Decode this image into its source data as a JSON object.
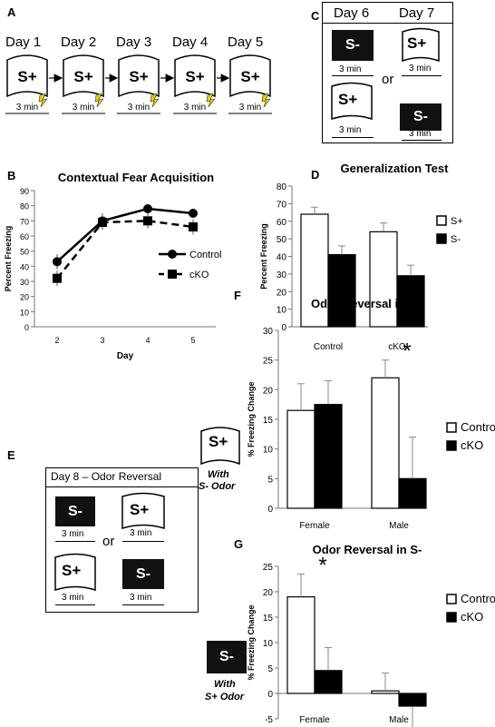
{
  "panels": {
    "A": "A",
    "B": "B",
    "C": "C",
    "D": "D",
    "E": "E",
    "F": "F",
    "G": "G"
  },
  "panelA": {
    "days": [
      "Day 1",
      "Day 2",
      "Day 3",
      "Day 4",
      "Day 5"
    ],
    "context": "S+",
    "duration": "3 min"
  },
  "panelC": {
    "day6": "Day 6",
    "day7": "Day 7",
    "s_minus": "S-",
    "s_plus": "S+",
    "or": "or",
    "duration": "3 min"
  },
  "panelE": {
    "title": "Day 8 – Odor Reversal",
    "s_minus": "S-",
    "s_plus": "S+",
    "or": "or",
    "duration": "3 min"
  },
  "panelF_icon": {
    "label": "S+",
    "caption1": "With",
    "caption2": "S- Odor"
  },
  "panelG_icon": {
    "label": "S-",
    "caption1": "With",
    "caption2": "S+ Odor"
  },
  "chart_data": [
    {
      "id": "B",
      "type": "line",
      "title": "Contextual Fear Acquisition",
      "xlabel": "Day",
      "ylabel": "Percent Freezing",
      "x": [
        2,
        3,
        4,
        5
      ],
      "ylim": [
        0,
        90
      ],
      "yticks": [
        0,
        10,
        20,
        30,
        40,
        50,
        60,
        70,
        80,
        90
      ],
      "series": [
        {
          "name": "Control",
          "values": [
            43,
            70,
            78,
            75
          ],
          "errors": [
            5,
            5,
            3,
            3
          ],
          "marker": "circle",
          "dash": "solid"
        },
        {
          "name": "cKO",
          "values": [
            32,
            69,
            70,
            66
          ],
          "errors": [
            5,
            5,
            5,
            5
          ],
          "marker": "square",
          "dash": "dashed"
        }
      ],
      "legend": "right"
    },
    {
      "id": "D",
      "type": "bar",
      "title": "Generalization Test",
      "ylabel": "Percent Freezing",
      "categories": [
        "Control",
        "cKO"
      ],
      "ylim": [
        0,
        80
      ],
      "yticks": [
        0,
        10,
        20,
        30,
        40,
        50,
        60,
        70,
        80
      ],
      "series": [
        {
          "name": "S+",
          "values": [
            64,
            54
          ],
          "errors": [
            4,
            5
          ],
          "fill": "#ffffff"
        },
        {
          "name": "S-",
          "values": [
            41,
            29
          ],
          "errors": [
            5,
            6
          ],
          "fill": "#000000"
        }
      ],
      "legend": "right"
    },
    {
      "id": "F",
      "type": "bar",
      "title": "Odor Reversal in S+",
      "ylabel": "% Freezing Change",
      "categories": [
        "Female",
        "Male"
      ],
      "ylim": [
        0,
        30
      ],
      "yticks": [
        0,
        5,
        10,
        15,
        20,
        25,
        30
      ],
      "series": [
        {
          "name": "Control",
          "values": [
            16.5,
            22
          ],
          "errors": [
            4.5,
            3
          ],
          "fill": "#ffffff"
        },
        {
          "name": "cKO",
          "values": [
            17.5,
            5
          ],
          "errors": [
            4,
            7
          ],
          "fill": "#000000"
        }
      ],
      "annotations": [
        {
          "category": "Male",
          "text": "*"
        }
      ],
      "legend": "right"
    },
    {
      "id": "G",
      "type": "bar",
      "title": "Odor Reversal in S-",
      "ylabel": "% Freezing Change",
      "categories": [
        "Female",
        "Male"
      ],
      "ylim": [
        -5,
        25
      ],
      "yticks": [
        -5,
        0,
        5,
        10,
        15,
        20,
        25
      ],
      "series": [
        {
          "name": "Control",
          "values": [
            19,
            0.5
          ],
          "errors": [
            4.5,
            3.5
          ],
          "fill": "#ffffff"
        },
        {
          "name": "cKO",
          "values": [
            4.5,
            -2.5
          ],
          "errors": [
            4.5,
            7.5
          ],
          "fill": "#000000"
        }
      ],
      "annotations": [
        {
          "category": "Female",
          "text": "*"
        }
      ],
      "legend": "right"
    }
  ]
}
